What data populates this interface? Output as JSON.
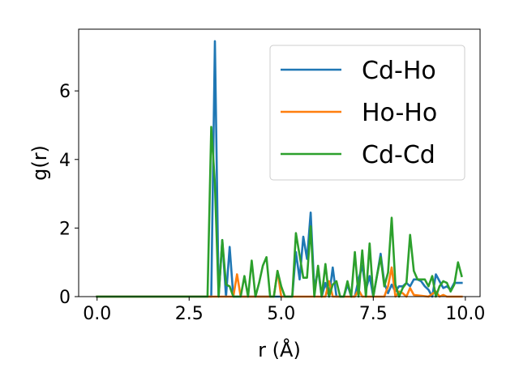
{
  "chart_data": {
    "type": "line",
    "title": "",
    "xlabel": "r (Å)",
    "ylabel": "g(r)",
    "xlim": [
      -0.5,
      10.4
    ],
    "ylim": [
      0,
      7.8
    ],
    "xticks": [
      0.0,
      2.5,
      5.0,
      7.5,
      10.0
    ],
    "xtick_labels": [
      "0.0",
      "2.5",
      "5.0",
      "7.5",
      "10.0"
    ],
    "yticks": [
      0,
      2,
      4,
      6
    ],
    "ytick_labels": [
      "0",
      "2",
      "4",
      "6"
    ],
    "grid": false,
    "legend_position": "top-right",
    "series": [
      {
        "name": "Cd-Ho",
        "color": "#1f77b4",
        "x": [
          0.0,
          1.0,
          2.0,
          2.9,
          3.0,
          3.1,
          3.2,
          3.3,
          3.4,
          3.5,
          3.6,
          3.7,
          3.8,
          3.9,
          4.0,
          4.1,
          4.2,
          4.3,
          4.4,
          4.5,
          4.6,
          4.7,
          4.8,
          4.9,
          5.0,
          5.1,
          5.2,
          5.3,
          5.4,
          5.5,
          5.6,
          5.7,
          5.8,
          5.9,
          6.0,
          6.1,
          6.2,
          6.3,
          6.4,
          6.5,
          6.6,
          6.7,
          6.8,
          6.9,
          7.0,
          7.1,
          7.2,
          7.3,
          7.4,
          7.5,
          7.6,
          7.7,
          7.8,
          7.9,
          8.0,
          8.1,
          8.2,
          8.3,
          8.4,
          8.5,
          8.6,
          8.7,
          8.8,
          8.9,
          9.0,
          9.1,
          9.2,
          9.3,
          9.4,
          9.5,
          9.6,
          9.7,
          9.8,
          9.9
        ],
        "values": [
          0.0,
          0.0,
          0.0,
          0.0,
          0.0,
          0.0,
          7.45,
          0.0,
          1.65,
          0.0,
          1.45,
          0.0,
          0.0,
          0.0,
          0.0,
          0.0,
          0.0,
          0.0,
          0.0,
          0.0,
          0.0,
          0.0,
          0.0,
          0.0,
          0.0,
          0.0,
          0.0,
          0.0,
          1.3,
          0.5,
          1.75,
          1.1,
          2.45,
          0.2,
          0.8,
          0.0,
          0.4,
          0.0,
          0.85,
          0.0,
          0.0,
          0.0,
          0.35,
          0.0,
          0.0,
          0.5,
          0.9,
          0.2,
          0.6,
          0.0,
          0.6,
          1.25,
          0.4,
          0.1,
          0.35,
          0.15,
          0.3,
          0.3,
          0.4,
          0.3,
          0.5,
          0.5,
          0.45,
          0.3,
          0.2,
          0.0,
          0.65,
          0.45,
          0.25,
          0.3,
          0.2,
          0.4,
          0.4,
          0.4
        ]
      },
      {
        "name": "Ho-Ho",
        "color": "#ff7f0e",
        "x": [
          0.0,
          1.0,
          2.0,
          3.0,
          3.5,
          3.7,
          3.8,
          3.9,
          4.0,
          4.5,
          4.8,
          4.9,
          5.0,
          5.1,
          5.5,
          6.0,
          6.2,
          6.3,
          6.4,
          6.5,
          7.0,
          7.1,
          7.2,
          7.3,
          7.5,
          7.8,
          7.9,
          8.0,
          8.1,
          8.2,
          8.3,
          8.4,
          8.5,
          8.6,
          9.0,
          9.2,
          9.3,
          9.4,
          9.5,
          9.8,
          9.9
        ],
        "values": [
          0.0,
          0.0,
          0.0,
          0.0,
          0.0,
          0.0,
          0.65,
          0.0,
          0.0,
          0.0,
          0.0,
          0.75,
          0.0,
          0.0,
          0.0,
          0.0,
          0.0,
          0.45,
          0.0,
          0.0,
          0.0,
          0.2,
          0.0,
          0.0,
          0.0,
          0.0,
          0.3,
          0.85,
          0.0,
          0.15,
          0.1,
          0.0,
          0.25,
          0.05,
          0.0,
          0.15,
          0.0,
          0.05,
          0.0,
          0.0,
          0.0
        ]
      },
      {
        "name": "Cd-Cd",
        "color": "#2ca02c",
        "x": [
          0.0,
          1.0,
          2.0,
          2.8,
          2.9,
          3.0,
          3.1,
          3.2,
          3.3,
          3.4,
          3.5,
          3.6,
          3.7,
          3.8,
          3.9,
          4.0,
          4.1,
          4.2,
          4.3,
          4.4,
          4.5,
          4.6,
          4.7,
          4.8,
          4.9,
          5.0,
          5.1,
          5.2,
          5.3,
          5.4,
          5.5,
          5.6,
          5.7,
          5.8,
          5.9,
          6.0,
          6.1,
          6.2,
          6.3,
          6.4,
          6.5,
          6.6,
          6.7,
          6.8,
          6.9,
          7.0,
          7.1,
          7.2,
          7.3,
          7.4,
          7.5,
          7.6,
          7.7,
          7.8,
          7.9,
          8.0,
          8.1,
          8.2,
          8.3,
          8.4,
          8.5,
          8.6,
          8.7,
          8.8,
          8.9,
          9.0,
          9.1,
          9.2,
          9.3,
          9.4,
          9.5,
          9.6,
          9.7,
          9.8,
          9.9
        ],
        "values": [
          0.0,
          0.0,
          0.0,
          0.0,
          0.0,
          0.0,
          4.95,
          3.3,
          0.0,
          1.65,
          0.35,
          0.3,
          0.0,
          0.0,
          0.0,
          0.6,
          0.0,
          1.05,
          0.0,
          0.4,
          0.9,
          1.15,
          0.0,
          0.0,
          0.75,
          0.3,
          0.0,
          0.0,
          0.0,
          1.85,
          1.2,
          0.55,
          0.55,
          2.05,
          0.0,
          0.9,
          0.0,
          0.95,
          0.0,
          0.35,
          0.45,
          0.0,
          0.0,
          0.45,
          0.0,
          1.3,
          0.0,
          1.35,
          0.0,
          1.55,
          0.0,
          0.6,
          1.15,
          0.3,
          0.7,
          2.3,
          0.35,
          0.0,
          0.25,
          0.4,
          1.8,
          0.75,
          0.5,
          0.5,
          0.5,
          0.3,
          0.6,
          0.0,
          0.3,
          0.45,
          0.4,
          0.15,
          0.35,
          1.0,
          0.6
        ]
      }
    ]
  }
}
